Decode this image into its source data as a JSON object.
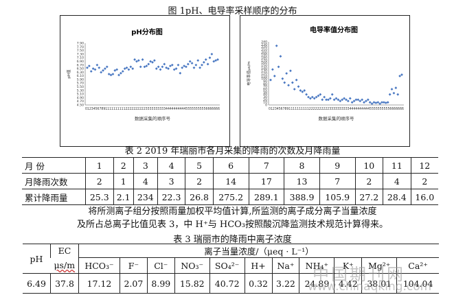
{
  "figure_title": "图 1pH、电导率采样顺序的分布",
  "chart_data": [
    {
      "type": "scatter",
      "title": "pH分布图",
      "xlabel": "数据采集的顺序号",
      "ylabel": "pH值",
      "ylim": [
        4.5,
        7.9
      ],
      "yticks": [
        "7.90",
        "7.70",
        "7.50",
        "7.30",
        "7.10",
        "6.90",
        "6.70",
        "6.50",
        "6.30",
        "6.10",
        "5.90",
        "5.70",
        "5.50",
        "5.30",
        "5.10",
        "4.90",
        "4.70",
        "4.50"
      ],
      "x_tick_text": "0123456789111111111122222222223333333333444444444455555555556666666",
      "points": [
        6.55,
        6.65,
        6.35,
        6.5,
        6.45,
        6.7,
        6.55,
        6.3,
        6.4,
        6.5,
        6.6,
        6.2,
        6.15,
        6.2,
        6.4,
        6.45,
        6.15,
        6.25,
        6.35,
        6.5,
        6.55,
        6.45,
        6.6,
        6.5,
        7.0,
        6.9,
        6.95,
        6.6,
        7.0,
        6.6,
        6.65,
        6.75,
        6.9,
        6.85,
        6.95,
        6.5,
        6.6,
        6.45,
        6.6,
        6.75,
        6.55,
        6.5,
        6.65,
        6.7,
        6.45,
        6.5,
        6.7,
        6.25,
        6.55,
        6.65,
        6.6,
        6.75,
        6.9,
        6.8,
        6.55,
        6.7,
        6.95,
        6.55,
        6.7,
        6.85,
        7.0,
        6.75,
        7.1,
        7.3,
        6.9,
        6.95,
        7.0
      ]
    },
    {
      "type": "scatter",
      "title": "电导率值分布图",
      "xlabel": "数据采集的顺序号",
      "ylabel": "电导率值μs/m",
      "ylim": [
        0,
        240
      ],
      "yticks": [
        "240",
        "230",
        "220",
        "210",
        "200",
        "190",
        "180",
        "170",
        "160",
        "150",
        "140",
        "130",
        "120",
        "110",
        "100",
        "90",
        "80",
        "70",
        "60",
        "50",
        "40",
        "30",
        "20",
        "10",
        "0"
      ],
      "x_tick_text": "0123456789111111111122222222223333333333444444444455555555556666666",
      "points": [
        95,
        135,
        110,
        225,
        145,
        185,
        100,
        85,
        120,
        75,
        130,
        85,
        60,
        95,
        70,
        55,
        50,
        55,
        40,
        30,
        25,
        30,
        25,
        30,
        35,
        40,
        20,
        30,
        20,
        20,
        25,
        40,
        20,
        25,
        20,
        15,
        20,
        25,
        20,
        15,
        25,
        10,
        15,
        20,
        20,
        15,
        20,
        10,
        15,
        20,
        10,
        5,
        10,
        8,
        10,
        5,
        10,
        10,
        8,
        10,
        40,
        60,
        45,
        65,
        40,
        110,
        115
      ]
    }
  ],
  "table2": {
    "caption": "表 2   2019 年瑞丽市各月采集的降雨的次数及月降雨量",
    "rows": [
      {
        "label": "月  份",
        "values": [
          "1",
          "2",
          "3",
          "4",
          "5",
          "6",
          "7",
          "8",
          "9",
          "10",
          "11",
          "12"
        ]
      },
      {
        "label": "月降雨次数",
        "values": [
          "2",
          "1",
          "4",
          "3",
          "2",
          "14",
          "17",
          "13",
          "7",
          "2",
          "4",
          "2"
        ]
      },
      {
        "label": "累计降雨量",
        "values": [
          "25.3",
          "2.1",
          "234",
          "22.3",
          "26.8",
          "275.2",
          "289.1",
          "388.9",
          "105.9",
          "27.2",
          "28.4",
          "16.0"
        ]
      }
    ]
  },
  "paragraph": {
    "line1": "将所测离子组分按照雨量加权平均值计算,所监测的离子成分离子当量浓度",
    "line2": "及所占总离子比值见表 3，中 H⁺与 HCO₃按照酸沉降监测技术规范计算得来。"
  },
  "table3": {
    "caption": "表 3  瑞丽市的降雨中离子浓度",
    "ph_label": "pH",
    "ec_label_1": "EC",
    "ec_label_2": "μs/m",
    "group_header": "离子当量浓度/（μeq · L⁻¹）",
    "ions": [
      "HCO₃⁻",
      "F⁻",
      "Cl⁻",
      "NO₃⁻",
      "SO₄²⁻",
      "H+",
      "Na⁺",
      "NH₄⁺",
      "K⁺",
      "Mg²⁺",
      "Ca²⁺"
    ],
    "values": [
      "6.49",
      "37.8",
      "17.12",
      "2.07",
      "8.99",
      "15.82",
      "40.72",
      "0.32",
      "3.22",
      "24.89",
      "4.42",
      "38.01",
      "104.04"
    ]
  },
  "watermark": {
    "cn": "中国期刊网",
    "url": "www.chinaqking.com"
  }
}
